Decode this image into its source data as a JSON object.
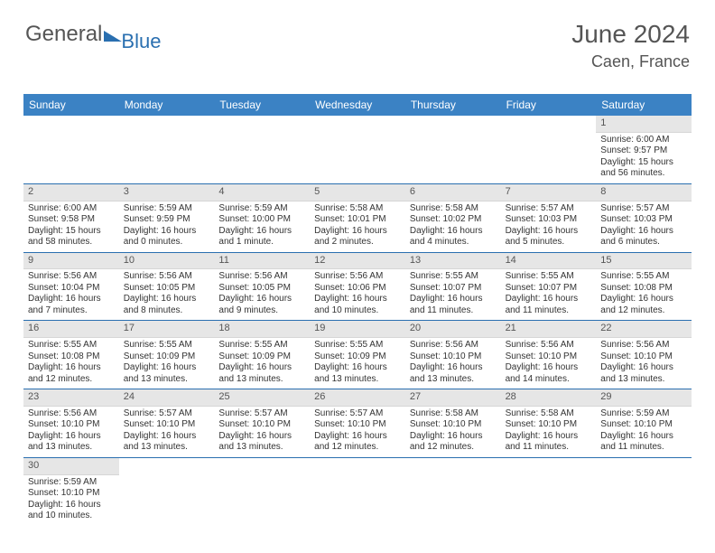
{
  "logo": {
    "part1": "General",
    "part2": "Blue"
  },
  "header": {
    "month": "June 2024",
    "location": "Caen, France"
  },
  "dayNames": [
    "Sunday",
    "Monday",
    "Tuesday",
    "Wednesday",
    "Thursday",
    "Friday",
    "Saturday"
  ],
  "colors": {
    "header_bg": "#3b82c4",
    "daynum_bg": "#e6e6e6",
    "border": "#2a6fb0",
    "text": "#333333",
    "title": "#555555"
  },
  "calendar": {
    "firstWeekday": 6,
    "daysInMonth": 30
  },
  "days": {
    "1": {
      "sunrise": "6:00 AM",
      "sunset": "9:57 PM",
      "daylight": "15 hours and 56 minutes."
    },
    "2": {
      "sunrise": "6:00 AM",
      "sunset": "9:58 PM",
      "daylight": "15 hours and 58 minutes."
    },
    "3": {
      "sunrise": "5:59 AM",
      "sunset": "9:59 PM",
      "daylight": "16 hours and 0 minutes."
    },
    "4": {
      "sunrise": "5:59 AM",
      "sunset": "10:00 PM",
      "daylight": "16 hours and 1 minute."
    },
    "5": {
      "sunrise": "5:58 AM",
      "sunset": "10:01 PM",
      "daylight": "16 hours and 2 minutes."
    },
    "6": {
      "sunrise": "5:58 AM",
      "sunset": "10:02 PM",
      "daylight": "16 hours and 4 minutes."
    },
    "7": {
      "sunrise": "5:57 AM",
      "sunset": "10:03 PM",
      "daylight": "16 hours and 5 minutes."
    },
    "8": {
      "sunrise": "5:57 AM",
      "sunset": "10:03 PM",
      "daylight": "16 hours and 6 minutes."
    },
    "9": {
      "sunrise": "5:56 AM",
      "sunset": "10:04 PM",
      "daylight": "16 hours and 7 minutes."
    },
    "10": {
      "sunrise": "5:56 AM",
      "sunset": "10:05 PM",
      "daylight": "16 hours and 8 minutes."
    },
    "11": {
      "sunrise": "5:56 AM",
      "sunset": "10:05 PM",
      "daylight": "16 hours and 9 minutes."
    },
    "12": {
      "sunrise": "5:56 AM",
      "sunset": "10:06 PM",
      "daylight": "16 hours and 10 minutes."
    },
    "13": {
      "sunrise": "5:55 AM",
      "sunset": "10:07 PM",
      "daylight": "16 hours and 11 minutes."
    },
    "14": {
      "sunrise": "5:55 AM",
      "sunset": "10:07 PM",
      "daylight": "16 hours and 11 minutes."
    },
    "15": {
      "sunrise": "5:55 AM",
      "sunset": "10:08 PM",
      "daylight": "16 hours and 12 minutes."
    },
    "16": {
      "sunrise": "5:55 AM",
      "sunset": "10:08 PM",
      "daylight": "16 hours and 12 minutes."
    },
    "17": {
      "sunrise": "5:55 AM",
      "sunset": "10:09 PM",
      "daylight": "16 hours and 13 minutes."
    },
    "18": {
      "sunrise": "5:55 AM",
      "sunset": "10:09 PM",
      "daylight": "16 hours and 13 minutes."
    },
    "19": {
      "sunrise": "5:55 AM",
      "sunset": "10:09 PM",
      "daylight": "16 hours and 13 minutes."
    },
    "20": {
      "sunrise": "5:56 AM",
      "sunset": "10:10 PM",
      "daylight": "16 hours and 13 minutes."
    },
    "21": {
      "sunrise": "5:56 AM",
      "sunset": "10:10 PM",
      "daylight": "16 hours and 14 minutes."
    },
    "22": {
      "sunrise": "5:56 AM",
      "sunset": "10:10 PM",
      "daylight": "16 hours and 13 minutes."
    },
    "23": {
      "sunrise": "5:56 AM",
      "sunset": "10:10 PM",
      "daylight": "16 hours and 13 minutes."
    },
    "24": {
      "sunrise": "5:57 AM",
      "sunset": "10:10 PM",
      "daylight": "16 hours and 13 minutes."
    },
    "25": {
      "sunrise": "5:57 AM",
      "sunset": "10:10 PM",
      "daylight": "16 hours and 13 minutes."
    },
    "26": {
      "sunrise": "5:57 AM",
      "sunset": "10:10 PM",
      "daylight": "16 hours and 12 minutes."
    },
    "27": {
      "sunrise": "5:58 AM",
      "sunset": "10:10 PM",
      "daylight": "16 hours and 12 minutes."
    },
    "28": {
      "sunrise": "5:58 AM",
      "sunset": "10:10 PM",
      "daylight": "16 hours and 11 minutes."
    },
    "29": {
      "sunrise": "5:59 AM",
      "sunset": "10:10 PM",
      "daylight": "16 hours and 11 minutes."
    },
    "30": {
      "sunrise": "5:59 AM",
      "sunset": "10:10 PM",
      "daylight": "16 hours and 10 minutes."
    }
  },
  "labels": {
    "sunrise": "Sunrise: ",
    "sunset": "Sunset: ",
    "daylight": "Daylight: "
  }
}
